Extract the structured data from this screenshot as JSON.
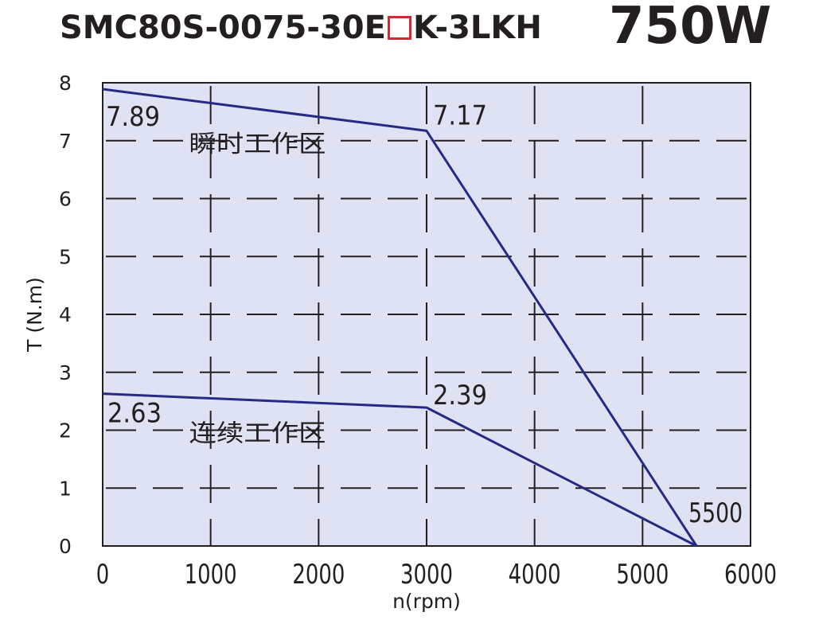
{
  "title": {
    "model_prefix": "SMC80S-0075-30E",
    "model_suffix": "K-3LKH",
    "power": "750W"
  },
  "colors": {
    "plot_bg": "#dfe2f3",
    "curve": "#262a85",
    "grid": "#231f20",
    "axis": "#231f20",
    "box": "#d7282f"
  },
  "chart_data": {
    "type": "line",
    "xlabel": "n(rpm)",
    "ylabel": "T (N.m)",
    "xlim": [
      0,
      6000
    ],
    "ylim": [
      0,
      8
    ],
    "x_ticks": [
      "0",
      "1000",
      "2000",
      "3000",
      "4000",
      "5000",
      "6000"
    ],
    "y_ticks": [
      "0",
      "1",
      "2",
      "3",
      "4",
      "5",
      "6",
      "7",
      "8"
    ],
    "grid": "dashed",
    "series": [
      {
        "x": [
          0,
          3000,
          5500
        ],
        "y": [
          7.89,
          7.17,
          0
        ]
      },
      {
        "x": [
          0,
          3000,
          5500
        ],
        "y": [
          2.63,
          2.39,
          0
        ]
      }
    ],
    "annotations": [
      {
        "text": "7.89",
        "x": 0,
        "y": 7.89
      },
      {
        "text": "7.17",
        "x": 3000,
        "y": 7.17
      },
      {
        "text": "2.63",
        "x": 0,
        "y": 2.63
      },
      {
        "text": "2.39",
        "x": 3000,
        "y": 2.39
      },
      {
        "text": "5500",
        "x": 5500,
        "y": 0
      }
    ],
    "regions": [
      {
        "text": "瞬时工作区",
        "x": 800,
        "y": 7.0
      },
      {
        "text": "连续工作区",
        "x": 800,
        "y": 2.0
      }
    ]
  }
}
